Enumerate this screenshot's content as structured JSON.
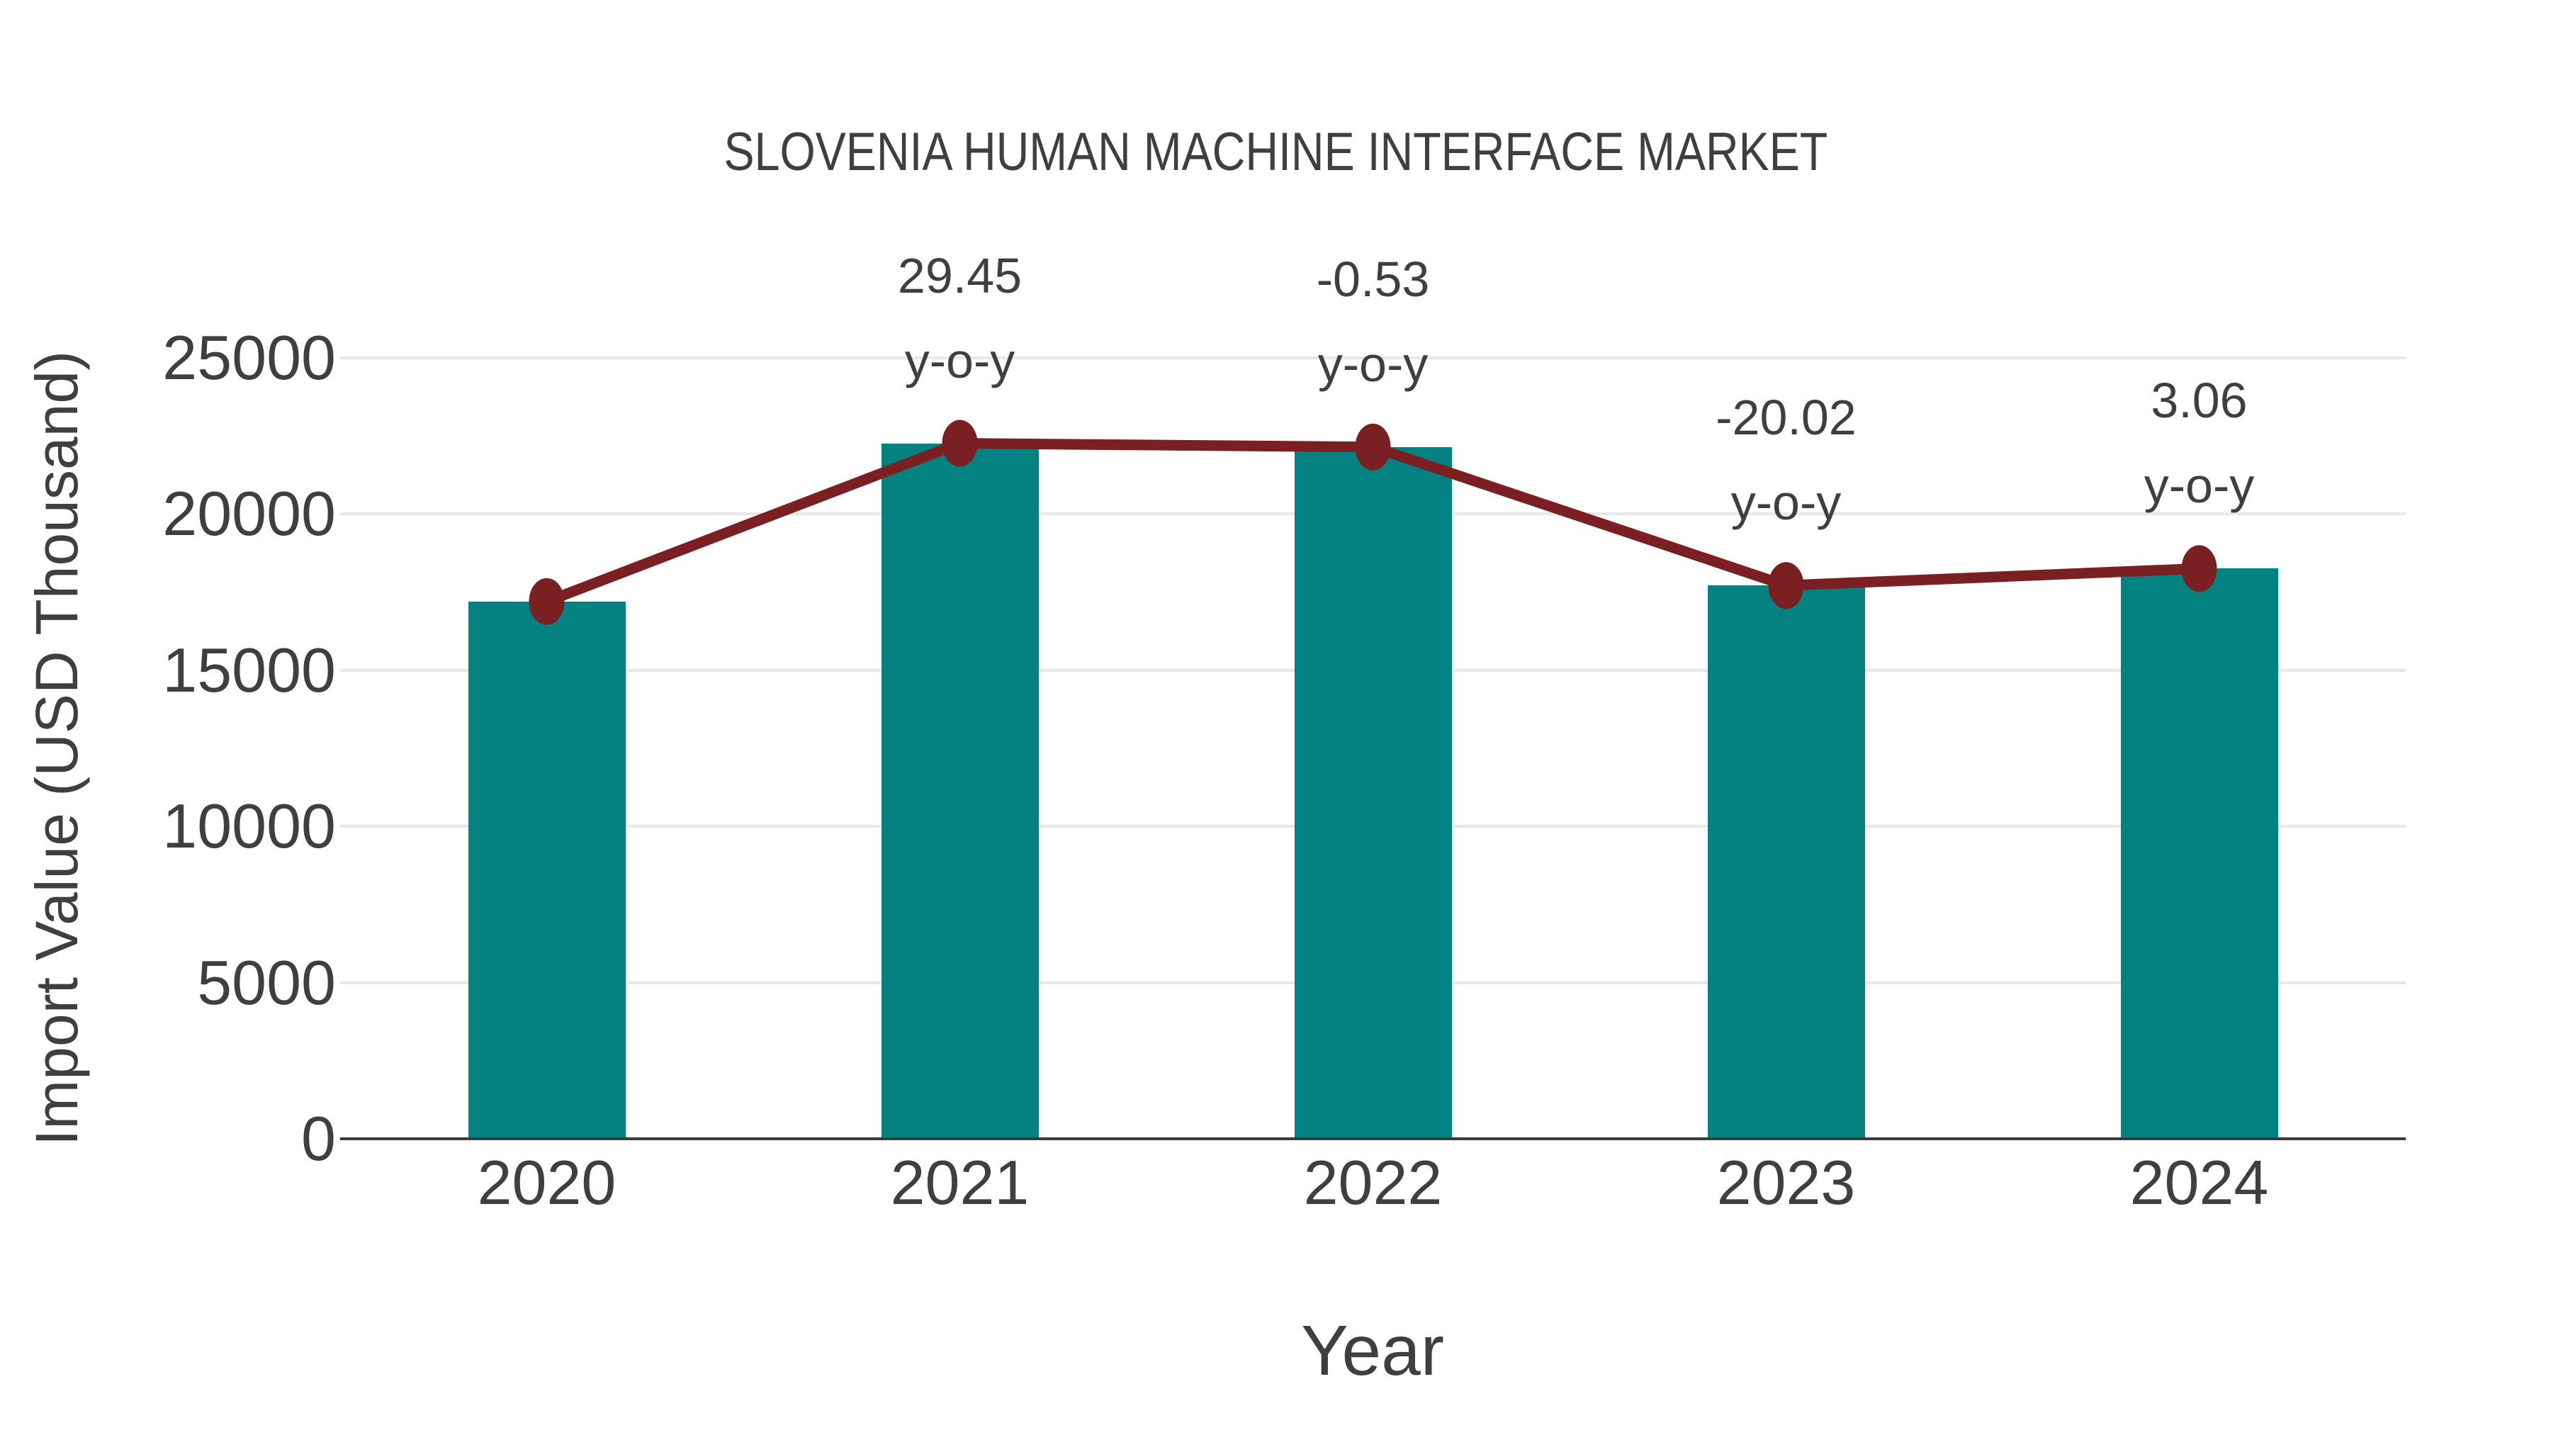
{
  "chart_data": {
    "type": "bar",
    "title": "SLOVENIA HUMAN MACHINE INTERFACE MARKET",
    "xlabel": "Year",
    "ylabel": "Import Value (USD Thousand)",
    "categories": [
      "2020",
      "2021",
      "2022",
      "2023",
      "2024"
    ],
    "series": [
      {
        "name": "import-value-bars",
        "type": "bar",
        "values": [
          17200,
          22265,
          22147,
          17713,
          18255
        ]
      },
      {
        "name": "yoy-trend-line",
        "type": "line",
        "values": [
          17200,
          22265,
          22147,
          17713,
          18255
        ]
      }
    ],
    "annotations": [
      {
        "category": "2021",
        "value": "29.45",
        "label": "y-o-y"
      },
      {
        "category": "2022",
        "value": "-0.53",
        "label": "y-o-y"
      },
      {
        "category": "2023",
        "value": "-20.02",
        "label": "y-o-y"
      },
      {
        "category": "2024",
        "value": "3.06",
        "label": "y-o-y"
      }
    ],
    "ylim": [
      0,
      25000
    ],
    "yticks": [
      "0",
      "5000",
      "10000",
      "15000",
      "20000",
      "25000"
    ],
    "grid": "horizontal",
    "legend": "none",
    "colors": {
      "bar": "#048181",
      "line": "#7b2022",
      "marker": "#7b2022",
      "text": "#3f3f3f",
      "grid": "#e8e8e8",
      "axis": "#3a3a3a",
      "background": "#ffffff"
    }
  }
}
